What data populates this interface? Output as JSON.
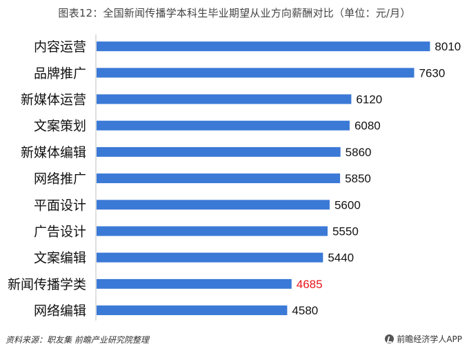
{
  "chart_data": {
    "type": "bar",
    "orientation": "horizontal",
    "title": "图表12：全国新闻传播学本科生毕业期望从业方向薪酬对比（单位：元/月）",
    "categories": [
      "内容运营",
      "品牌推广",
      "新媒体运营",
      "文案策划",
      "新媒体编辑",
      "网络推广",
      "平面设计",
      "广告设计",
      "文案编辑",
      "新闻传播学类",
      "网络编辑"
    ],
    "values": [
      8010,
      7630,
      6120,
      6080,
      5860,
      5850,
      5600,
      5550,
      5440,
      4685,
      4580
    ],
    "highlight_category": "新闻传播学类",
    "xlim": [
      0,
      8500
    ],
    "grid": false,
    "colors": {
      "bar": "#3b79d6",
      "label": "#111111",
      "highlight_label": "#e8141b"
    }
  },
  "footer": {
    "source": "资料来源：职友集 前瞻产业研究院整理",
    "brand": "前瞻经济学人APP"
  }
}
